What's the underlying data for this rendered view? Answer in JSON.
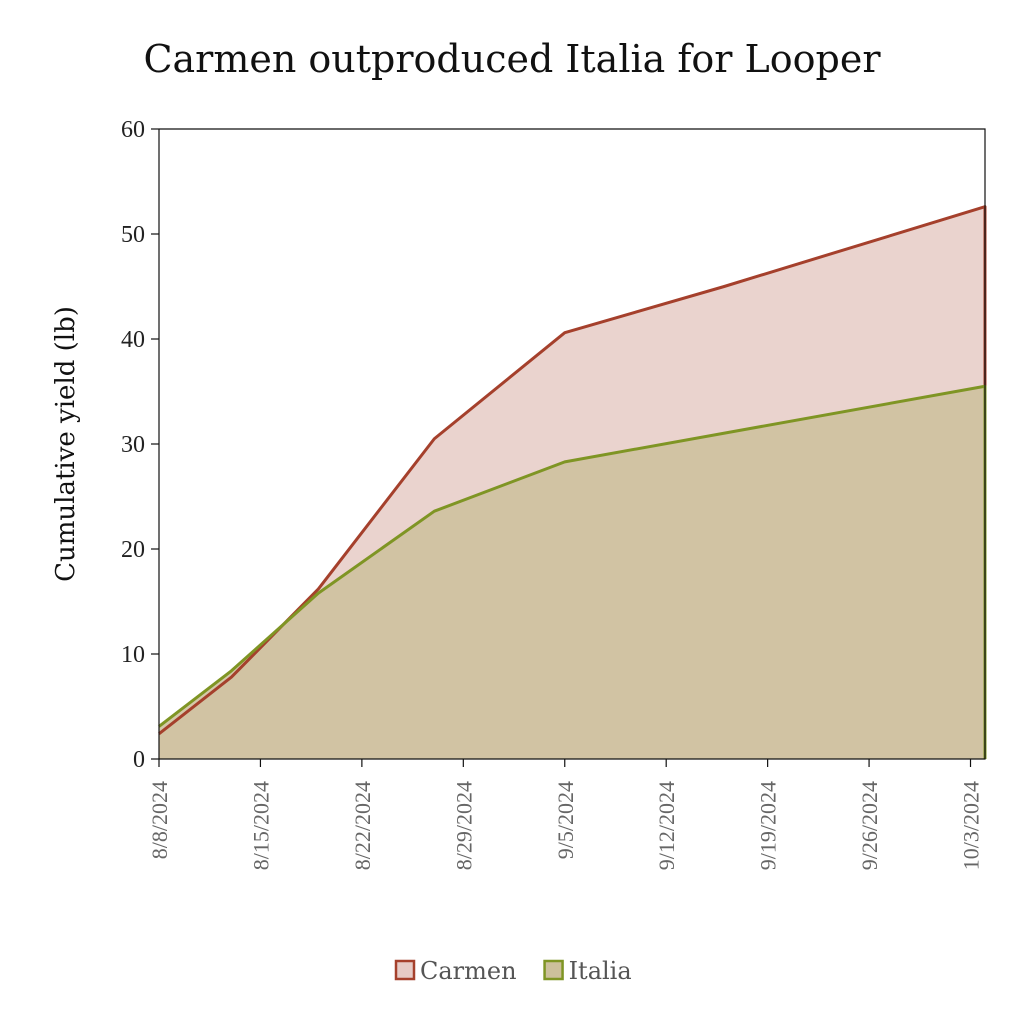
{
  "chart_data": {
    "type": "area",
    "title": "Carmen outproduced Italia for Looper",
    "xlabel": "",
    "ylabel": "Cumulative yield (lb)",
    "ylim": [
      0,
      60
    ],
    "yticks": [
      "0",
      "10",
      "20",
      "30",
      "40",
      "50",
      "60"
    ],
    "xlim": [
      "2024-08-08",
      "2024-10-04"
    ],
    "xticks": [
      "8/8/2024",
      "8/15/2024",
      "8/22/2024",
      "8/29/2024",
      "9/5/2024",
      "9/12/2024",
      "9/19/2024",
      "9/26/2024",
      "10/3/2024"
    ],
    "grid": false,
    "legend_position": "bottom",
    "series": [
      {
        "name": "Carmen",
        "color": "#a5402c",
        "fill": "#e6cbc6",
        "x": [
          "2024-08-08",
          "2024-08-13",
          "2024-08-19",
          "2024-08-27",
          "2024-09-05",
          "2024-09-16",
          "2024-10-04"
        ],
        "y": [
          2.4,
          7.8,
          16.2,
          30.5,
          40.6,
          45.0,
          52.6
        ]
      },
      {
        "name": "Italia",
        "color": "#7f9524",
        "fill": "#ccc09b",
        "x": [
          "2024-08-08",
          "2024-08-13",
          "2024-08-19",
          "2024-08-27",
          "2024-09-05",
          "2024-10-04"
        ],
        "y": [
          3.1,
          8.4,
          15.8,
          23.6,
          28.3,
          35.5
        ]
      }
    ]
  }
}
